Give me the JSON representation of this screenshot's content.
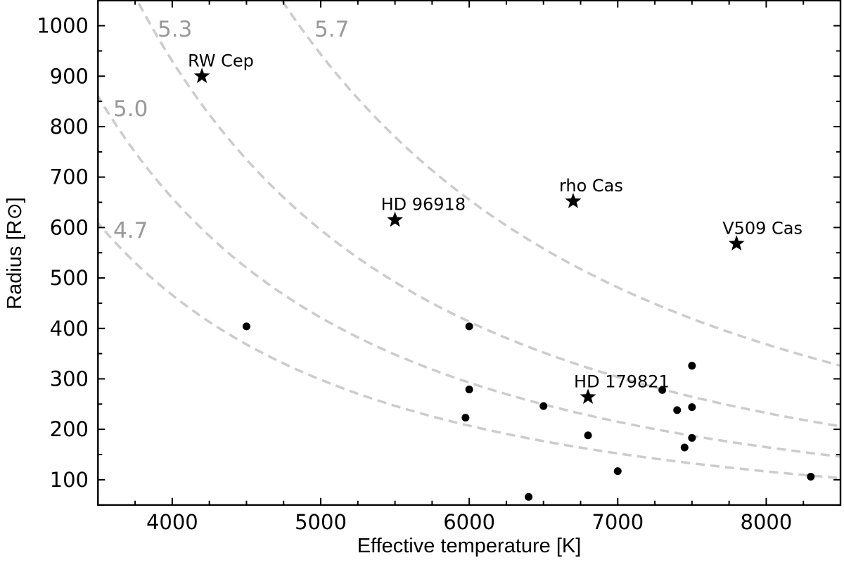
{
  "chart_data": {
    "type": "scatter",
    "title": "",
    "xlabel": "Effective temperature [K]",
    "ylabel": "Radius [R⊙]",
    "xlim": [
      3500,
      8500
    ],
    "ylim": [
      50,
      1050
    ],
    "x_ticks": [
      4000,
      5000,
      6000,
      7000,
      8000
    ],
    "y_ticks": [
      100,
      200,
      300,
      400,
      500,
      600,
      700,
      800,
      900,
      1000
    ],
    "x_minor_step": 250,
    "y_minor_step": 50,
    "ticks_direction": "in",
    "grid": false,
    "legend": "none",
    "series": [
      {
        "marker": "circle",
        "color": "#000000",
        "points": [
          {
            "x": 4500,
            "y": 404
          },
          {
            "x": 6000,
            "y": 404
          },
          {
            "x": 6000,
            "y": 279
          },
          {
            "x": 5975,
            "y": 223
          },
          {
            "x": 6400,
            "y": 66
          },
          {
            "x": 6500,
            "y": 246
          },
          {
            "x": 6800,
            "y": 188
          },
          {
            "x": 7000,
            "y": 117
          },
          {
            "x": 7300,
            "y": 278
          },
          {
            "x": 7400,
            "y": 238
          },
          {
            "x": 7450,
            "y": 164
          },
          {
            "x": 7500,
            "y": 326
          },
          {
            "x": 7500,
            "y": 244
          },
          {
            "x": 7500,
            "y": 183
          },
          {
            "x": 8300,
            "y": 106
          }
        ]
      },
      {
        "marker": "star",
        "color": "#000000",
        "points": [
          {
            "x": 4200,
            "y": 900,
            "label": "RW Cep"
          },
          {
            "x": 5500,
            "y": 615,
            "label": "HD 96918"
          },
          {
            "x": 6700,
            "y": 652,
            "label": "rho Cas"
          },
          {
            "x": 7800,
            "y": 568,
            "label": "V509 Cas"
          },
          {
            "x": 6800,
            "y": 264,
            "label": "HD 179821"
          }
        ]
      }
    ],
    "iso_luminosity_curves": {
      "color": "#cccccc",
      "style": "dashed",
      "curves": [
        {
          "log_L": 4.7,
          "label": "4.7"
        },
        {
          "log_L": 5.0,
          "label": "5.0"
        },
        {
          "log_L": 5.3,
          "label": "5.3"
        },
        {
          "log_L": 5.7,
          "label": "5.7"
        }
      ]
    }
  }
}
